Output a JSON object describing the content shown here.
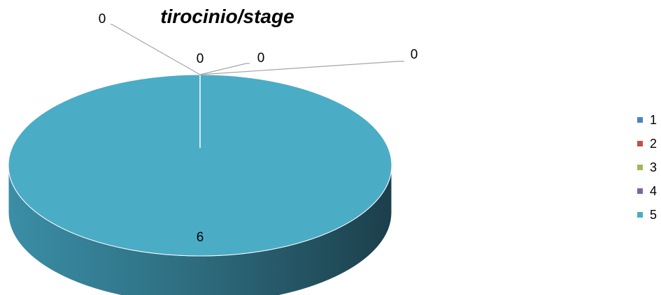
{
  "chart_data": {
    "type": "pie",
    "title": "tirocinio/stage",
    "categories": [
      "1",
      "2",
      "3",
      "4",
      "5"
    ],
    "values": [
      0,
      0,
      0,
      0,
      6
    ],
    "data_labels": [
      "0",
      "0",
      "0",
      "0",
      "6"
    ],
    "legend_position": "right",
    "three_d": true,
    "colors": [
      "#4F81BD",
      "#C0504D",
      "#9BBB59",
      "#8064A2",
      "#4BACC6"
    ]
  }
}
